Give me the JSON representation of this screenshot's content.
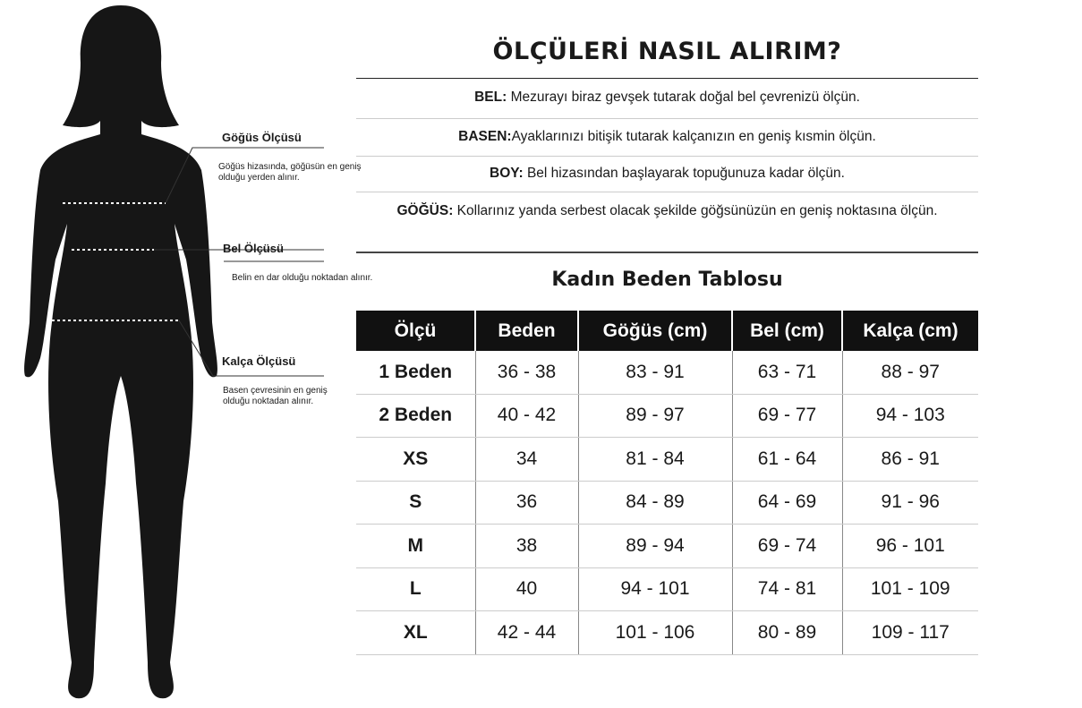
{
  "title": "ÖLÇÜLERİ NASIL ALIRIM?",
  "instructions": [
    {
      "key": "BEL:",
      "text": " Mezurayı biraz gevşek tutarak doğal bel çevrenizü ölçün."
    },
    {
      "key": "BASEN:",
      "text": "Ayaklarınızı bitişik tutarak kalçanızın en geniş kısmin ölçün."
    },
    {
      "key": "BOY:",
      "text": " Bel hizasından başlayarak topuğunuza kadar ölçün."
    },
    {
      "key": "GÖĞÜS:",
      "text": " Kollarınız yanda serbest olacak şekilde göğsünüzün en geniş noktasına ölçün."
    }
  ],
  "figure": {
    "chest": {
      "label": "Göğüs Ölçüsü",
      "desc": "Göğüs hizasında, göğüsün en geniş olduğu yerden alınır."
    },
    "waist": {
      "label": "Bel Ölçüsü",
      "desc": "Belin en dar olduğu noktadan alınır."
    },
    "hip": {
      "label": "Kalça Ölçüsü",
      "desc": "Basen çevresinin en geniş olduğu noktadan alınır."
    }
  },
  "table": {
    "title": "Kadın Beden Tablosu",
    "headers": [
      "Ölçü",
      "Beden",
      "Göğüs (cm)",
      "Bel (cm)",
      "Kalça (cm)"
    ],
    "rows": [
      [
        "1 Beden",
        "36 - 38",
        "83 - 91",
        "63 - 71",
        "88 - 97"
      ],
      [
        "2 Beden",
        "40 - 42",
        "89 - 97",
        "69 - 77",
        "94 - 103"
      ],
      [
        "XS",
        "34",
        "81 - 84",
        "61 - 64",
        "86 - 91"
      ],
      [
        "S",
        "36",
        "84 - 89",
        "64 - 69",
        "91 - 96"
      ],
      [
        "M",
        "38",
        "89 - 94",
        "69 - 74",
        "96 - 101"
      ],
      [
        "L",
        "40",
        "94 - 101",
        "74 - 81",
        "101 - 109"
      ],
      [
        "XL",
        "42 - 44",
        "101 - 106",
        "80 - 89",
        "109 - 117"
      ]
    ]
  }
}
